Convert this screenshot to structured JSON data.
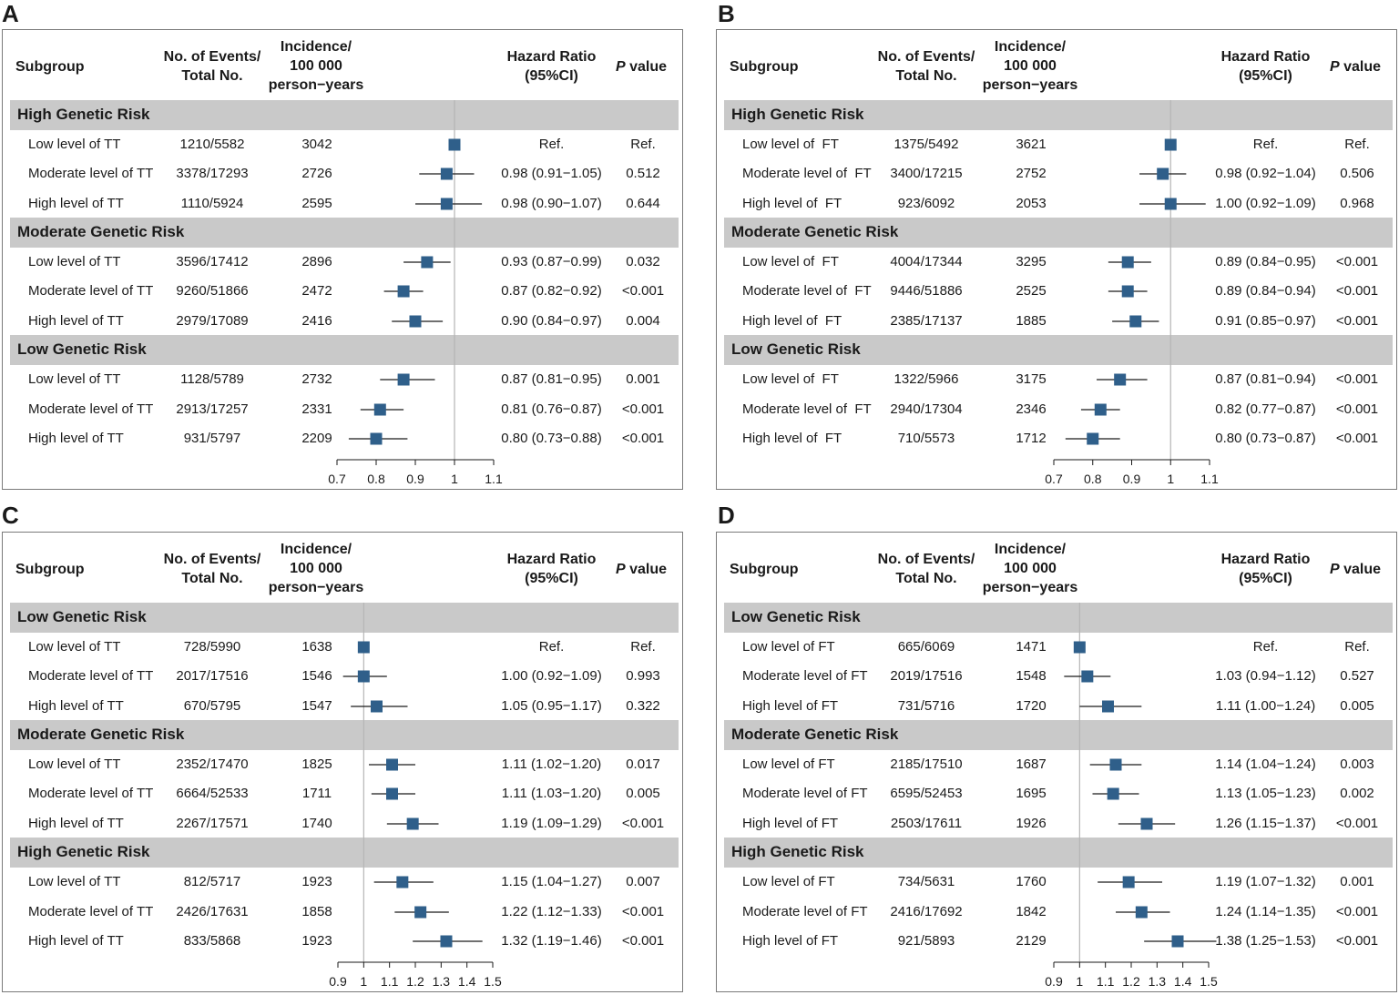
{
  "panels": [
    {
      "label": "A",
      "headers": {
        "subgroup": "Subgroup",
        "events_1": "No. of Events/",
        "events_2": "Total No.",
        "inc_1": "Incidence/",
        "inc_2": "100 000",
        "inc_3": "person−years",
        "hr_1": "Hazard Ratio",
        "hr_2": "(95%CI)",
        "p_italic": "P",
        "p_rest": " value"
      },
      "chart_data": {
        "type": "forest",
        "xlim": [
          0.7,
          1.1
        ],
        "ticks": [
          "0.7",
          "0.8",
          "0.9",
          "1",
          "1.1"
        ],
        "ref_line": 1,
        "groups": [
          {
            "name": "High Genetic Risk",
            "rows": [
              {
                "label": "Low level of TT",
                "events": "1210/5582",
                "incidence": "3042",
                "hr": 1.0,
                "lo": 1.0,
                "hi": 1.0,
                "hr_text": "Ref.",
                "p": "Ref."
              },
              {
                "label": "Moderate level of TT",
                "events": "3378/17293",
                "incidence": "2726",
                "hr": 0.98,
                "lo": 0.91,
                "hi": 1.05,
                "hr_text": "0.98 (0.91−1.05)",
                "p": "0.512"
              },
              {
                "label": "High level of TT",
                "events": "1110/5924",
                "incidence": "2595",
                "hr": 0.98,
                "lo": 0.9,
                "hi": 1.07,
                "hr_text": "0.98 (0.90−1.07)",
                "p": "0.644"
              }
            ]
          },
          {
            "name": "Moderate Genetic Risk",
            "rows": [
              {
                "label": "Low level of TT",
                "events": "3596/17412",
                "incidence": "2896",
                "hr": 0.93,
                "lo": 0.87,
                "hi": 0.99,
                "hr_text": "0.93 (0.87−0.99)",
                "p": "0.032"
              },
              {
                "label": "Moderate level of TT",
                "events": "9260/51866",
                "incidence": "2472",
                "hr": 0.87,
                "lo": 0.82,
                "hi": 0.92,
                "hr_text": "0.87 (0.82−0.92)",
                "p": "<0.001"
              },
              {
                "label": "High level of TT",
                "events": "2979/17089",
                "incidence": "2416",
                "hr": 0.9,
                "lo": 0.84,
                "hi": 0.97,
                "hr_text": "0.90 (0.84−0.97)",
                "p": "0.004"
              }
            ]
          },
          {
            "name": "Low Genetic Risk",
            "rows": [
              {
                "label": "Low level of TT",
                "events": "1128/5789",
                "incidence": "2732",
                "hr": 0.87,
                "lo": 0.81,
                "hi": 0.95,
                "hr_text": "0.87 (0.81−0.95)",
                "p": "0.001"
              },
              {
                "label": "Moderate level of TT",
                "events": "2913/17257",
                "incidence": "2331",
                "hr": 0.81,
                "lo": 0.76,
                "hi": 0.87,
                "hr_text": "0.81 (0.76−0.87)",
                "p": "<0.001"
              },
              {
                "label": "High level of TT",
                "events": "931/5797",
                "incidence": "2209",
                "hr": 0.8,
                "lo": 0.73,
                "hi": 0.88,
                "hr_text": "0.80 (0.73−0.88)",
                "p": "<0.001"
              }
            ]
          }
        ]
      }
    },
    {
      "label": "B",
      "headers": {
        "subgroup": "Subgroup",
        "events_1": "No. of Events/",
        "events_2": "Total No.",
        "inc_1": "Incidence/",
        "inc_2": "100 000",
        "inc_3": "person−years",
        "hr_1": "Hazard Ratio",
        "hr_2": "(95%CI)",
        "p_italic": "P",
        "p_rest": " value"
      },
      "chart_data": {
        "type": "forest",
        "xlim": [
          0.7,
          1.1
        ],
        "ticks": [
          "0.7",
          "0.8",
          "0.9",
          "1",
          "1.1"
        ],
        "ref_line": 1,
        "groups": [
          {
            "name": "High Genetic Risk",
            "rows": [
              {
                "label": "Low level of  FT",
                "events": "1375/5492",
                "incidence": "3621",
                "hr": 1.0,
                "lo": 1.0,
                "hi": 1.0,
                "hr_text": "Ref.",
                "p": "Ref."
              },
              {
                "label": "Moderate level of  FT",
                "events": "3400/17215",
                "incidence": "2752",
                "hr": 0.98,
                "lo": 0.92,
                "hi": 1.04,
                "hr_text": "0.98 (0.92−1.04)",
                "p": "0.506"
              },
              {
                "label": "High level of  FT",
                "events": "923/6092",
                "incidence": "2053",
                "hr": 1.0,
                "lo": 0.92,
                "hi": 1.09,
                "hr_text": "1.00 (0.92−1.09)",
                "p": "0.968"
              }
            ]
          },
          {
            "name": "Moderate Genetic Risk",
            "rows": [
              {
                "label": "Low level of  FT",
                "events": "4004/17344",
                "incidence": "3295",
                "hr": 0.89,
                "lo": 0.84,
                "hi": 0.95,
                "hr_text": "0.89 (0.84−0.95)",
                "p": "<0.001"
              },
              {
                "label": "Moderate level of  FT",
                "events": "9446/51886",
                "incidence": "2525",
                "hr": 0.89,
                "lo": 0.84,
                "hi": 0.94,
                "hr_text": "0.89 (0.84−0.94)",
                "p": "<0.001"
              },
              {
                "label": "High level of  FT",
                "events": "2385/17137",
                "incidence": "1885",
                "hr": 0.91,
                "lo": 0.85,
                "hi": 0.97,
                "hr_text": "0.91 (0.85−0.97)",
                "p": "<0.001"
              }
            ]
          },
          {
            "name": "Low Genetic Risk",
            "rows": [
              {
                "label": "Low level of  FT",
                "events": "1322/5966",
                "incidence": "3175",
                "hr": 0.87,
                "lo": 0.81,
                "hi": 0.94,
                "hr_text": "0.87 (0.81−0.94)",
                "p": "<0.001"
              },
              {
                "label": "Moderate level of  FT",
                "events": "2940/17304",
                "incidence": "2346",
                "hr": 0.82,
                "lo": 0.77,
                "hi": 0.87,
                "hr_text": "0.82 (0.77−0.87)",
                "p": "<0.001"
              },
              {
                "label": "High level of  FT",
                "events": "710/5573",
                "incidence": "1712",
                "hr": 0.8,
                "lo": 0.73,
                "hi": 0.87,
                "hr_text": "0.80 (0.73−0.87)",
                "p": "<0.001"
              }
            ]
          }
        ]
      }
    },
    {
      "label": "C",
      "headers": {
        "subgroup": "Subgroup",
        "events_1": "No. of Events/",
        "events_2": "Total No.",
        "inc_1": "Incidence/",
        "inc_2": "100 000",
        "inc_3": "person−years",
        "hr_1": "Hazard Ratio",
        "hr_2": "(95%CI)",
        "p_italic": "P",
        "p_rest": " value"
      },
      "chart_data": {
        "type": "forest",
        "xlim": [
          0.9,
          1.5
        ],
        "ticks": [
          "0.9",
          "1",
          "1.1",
          "1.2",
          "1.3",
          "1.4",
          "1.5"
        ],
        "ref_line": 1,
        "groups": [
          {
            "name": "Low Genetic Risk",
            "rows": [
              {
                "label": "Low level of TT",
                "events": "728/5990",
                "incidence": "1638",
                "hr": 1.0,
                "lo": 1.0,
                "hi": 1.0,
                "hr_text": "Ref.",
                "p": "Ref."
              },
              {
                "label": "Moderate level of TT",
                "events": "2017/17516",
                "incidence": "1546",
                "hr": 1.0,
                "lo": 0.92,
                "hi": 1.09,
                "hr_text": "1.00 (0.92−1.09)",
                "p": "0.993"
              },
              {
                "label": "High level of TT",
                "events": "670/5795",
                "incidence": "1547",
                "hr": 1.05,
                "lo": 0.95,
                "hi": 1.17,
                "hr_text": "1.05 (0.95−1.17)",
                "p": "0.322"
              }
            ]
          },
          {
            "name": "Moderate Genetic Risk",
            "rows": [
              {
                "label": "Low level of TT",
                "events": "2352/17470",
                "incidence": "1825",
                "hr": 1.11,
                "lo": 1.02,
                "hi": 1.2,
                "hr_text": "1.11 (1.02−1.20)",
                "p": "0.017"
              },
              {
                "label": "Moderate level of TT",
                "events": "6664/52533",
                "incidence": "1711",
                "hr": 1.11,
                "lo": 1.03,
                "hi": 1.2,
                "hr_text": "1.11 (1.03−1.20)",
                "p": "0.005"
              },
              {
                "label": "High level of TT",
                "events": "2267/17571",
                "incidence": "1740",
                "hr": 1.19,
                "lo": 1.09,
                "hi": 1.29,
                "hr_text": "1.19 (1.09−1.29)",
                "p": "<0.001"
              }
            ]
          },
          {
            "name": "High Genetic Risk",
            "rows": [
              {
                "label": "Low level of TT",
                "events": "812/5717",
                "incidence": "1923",
                "hr": 1.15,
                "lo": 1.04,
                "hi": 1.27,
                "hr_text": "1.15 (1.04−1.27)",
                "p": "0.007"
              },
              {
                "label": "Moderate level of TT",
                "events": "2426/17631",
                "incidence": "1858",
                "hr": 1.22,
                "lo": 1.12,
                "hi": 1.33,
                "hr_text": "1.22 (1.12−1.33)",
                "p": "<0.001"
              },
              {
                "label": "High level of TT",
                "events": "833/5868",
                "incidence": "1923",
                "hr": 1.32,
                "lo": 1.19,
                "hi": 1.46,
                "hr_text": "1.32 (1.19−1.46)",
                "p": "<0.001"
              }
            ]
          }
        ]
      }
    },
    {
      "label": "D",
      "headers": {
        "subgroup": "Subgroup",
        "events_1": "No. of Events/",
        "events_2": "Total No.",
        "inc_1": "Incidence/",
        "inc_2": "100 000",
        "inc_3": "person−years",
        "hr_1": "Hazard Ratio",
        "hr_2": "(95%CI)",
        "p_italic": "P",
        "p_rest": " value"
      },
      "chart_data": {
        "type": "forest",
        "xlim": [
          0.9,
          1.5
        ],
        "ticks": [
          "0.9",
          "1",
          "1.1",
          "1.2",
          "1.3",
          "1.4",
          "1.5"
        ],
        "ref_line": 1,
        "groups": [
          {
            "name": "Low Genetic Risk",
            "rows": [
              {
                "label": "Low level of FT",
                "events": "665/6069",
                "incidence": "1471",
                "hr": 1.0,
                "lo": 1.0,
                "hi": 1.0,
                "hr_text": "Ref.",
                "p": "Ref."
              },
              {
                "label": "Moderate level of FT",
                "events": "2019/17516",
                "incidence": "1548",
                "hr": 1.03,
                "lo": 0.94,
                "hi": 1.12,
                "hr_text": "1.03 (0.94−1.12)",
                "p": "0.527"
              },
              {
                "label": "High level of FT",
                "events": "731/5716",
                "incidence": "1720",
                "hr": 1.11,
                "lo": 1.0,
                "hi": 1.24,
                "hr_text": "1.11 (1.00−1.24)",
                "p": "0.005"
              }
            ]
          },
          {
            "name": "Moderate Genetic Risk",
            "rows": [
              {
                "label": "Low level of FT",
                "events": "2185/17510",
                "incidence": "1687",
                "hr": 1.14,
                "lo": 1.04,
                "hi": 1.24,
                "hr_text": "1.14 (1.04−1.24)",
                "p": "0.003"
              },
              {
                "label": "Moderate level of FT",
                "events": "6595/52453",
                "incidence": "1695",
                "hr": 1.13,
                "lo": 1.05,
                "hi": 1.23,
                "hr_text": "1.13 (1.05−1.23)",
                "p": "0.002"
              },
              {
                "label": "High level of FT",
                "events": "2503/17611",
                "incidence": "1926",
                "hr": 1.26,
                "lo": 1.15,
                "hi": 1.37,
                "hr_text": "1.26 (1.15−1.37)",
                "p": "<0.001"
              }
            ]
          },
          {
            "name": "High Genetic Risk",
            "rows": [
              {
                "label": "Low level of FT",
                "events": "734/5631",
                "incidence": "1760",
                "hr": 1.19,
                "lo": 1.07,
                "hi": 1.32,
                "hr_text": "1.19 (1.07−1.32)",
                "p": "0.001"
              },
              {
                "label": "Moderate level of FT",
                "events": "2416/17692",
                "incidence": "1842",
                "hr": 1.24,
                "lo": 1.14,
                "hi": 1.35,
                "hr_text": "1.24 (1.14−1.35)",
                "p": "<0.001"
              },
              {
                "label": "High level of FT",
                "events": "921/5893",
                "incidence": "2129",
                "hr": 1.38,
                "lo": 1.25,
                "hi": 1.53,
                "hr_text": "1.38 (1.25−1.53)",
                "p": "<0.001"
              }
            ]
          }
        ]
      }
    }
  ],
  "colors": {
    "marker": "#2f5f8a",
    "band": "#c9c9c9",
    "line": "#1a1a1a",
    "ref_line": "#b5b5b5"
  }
}
